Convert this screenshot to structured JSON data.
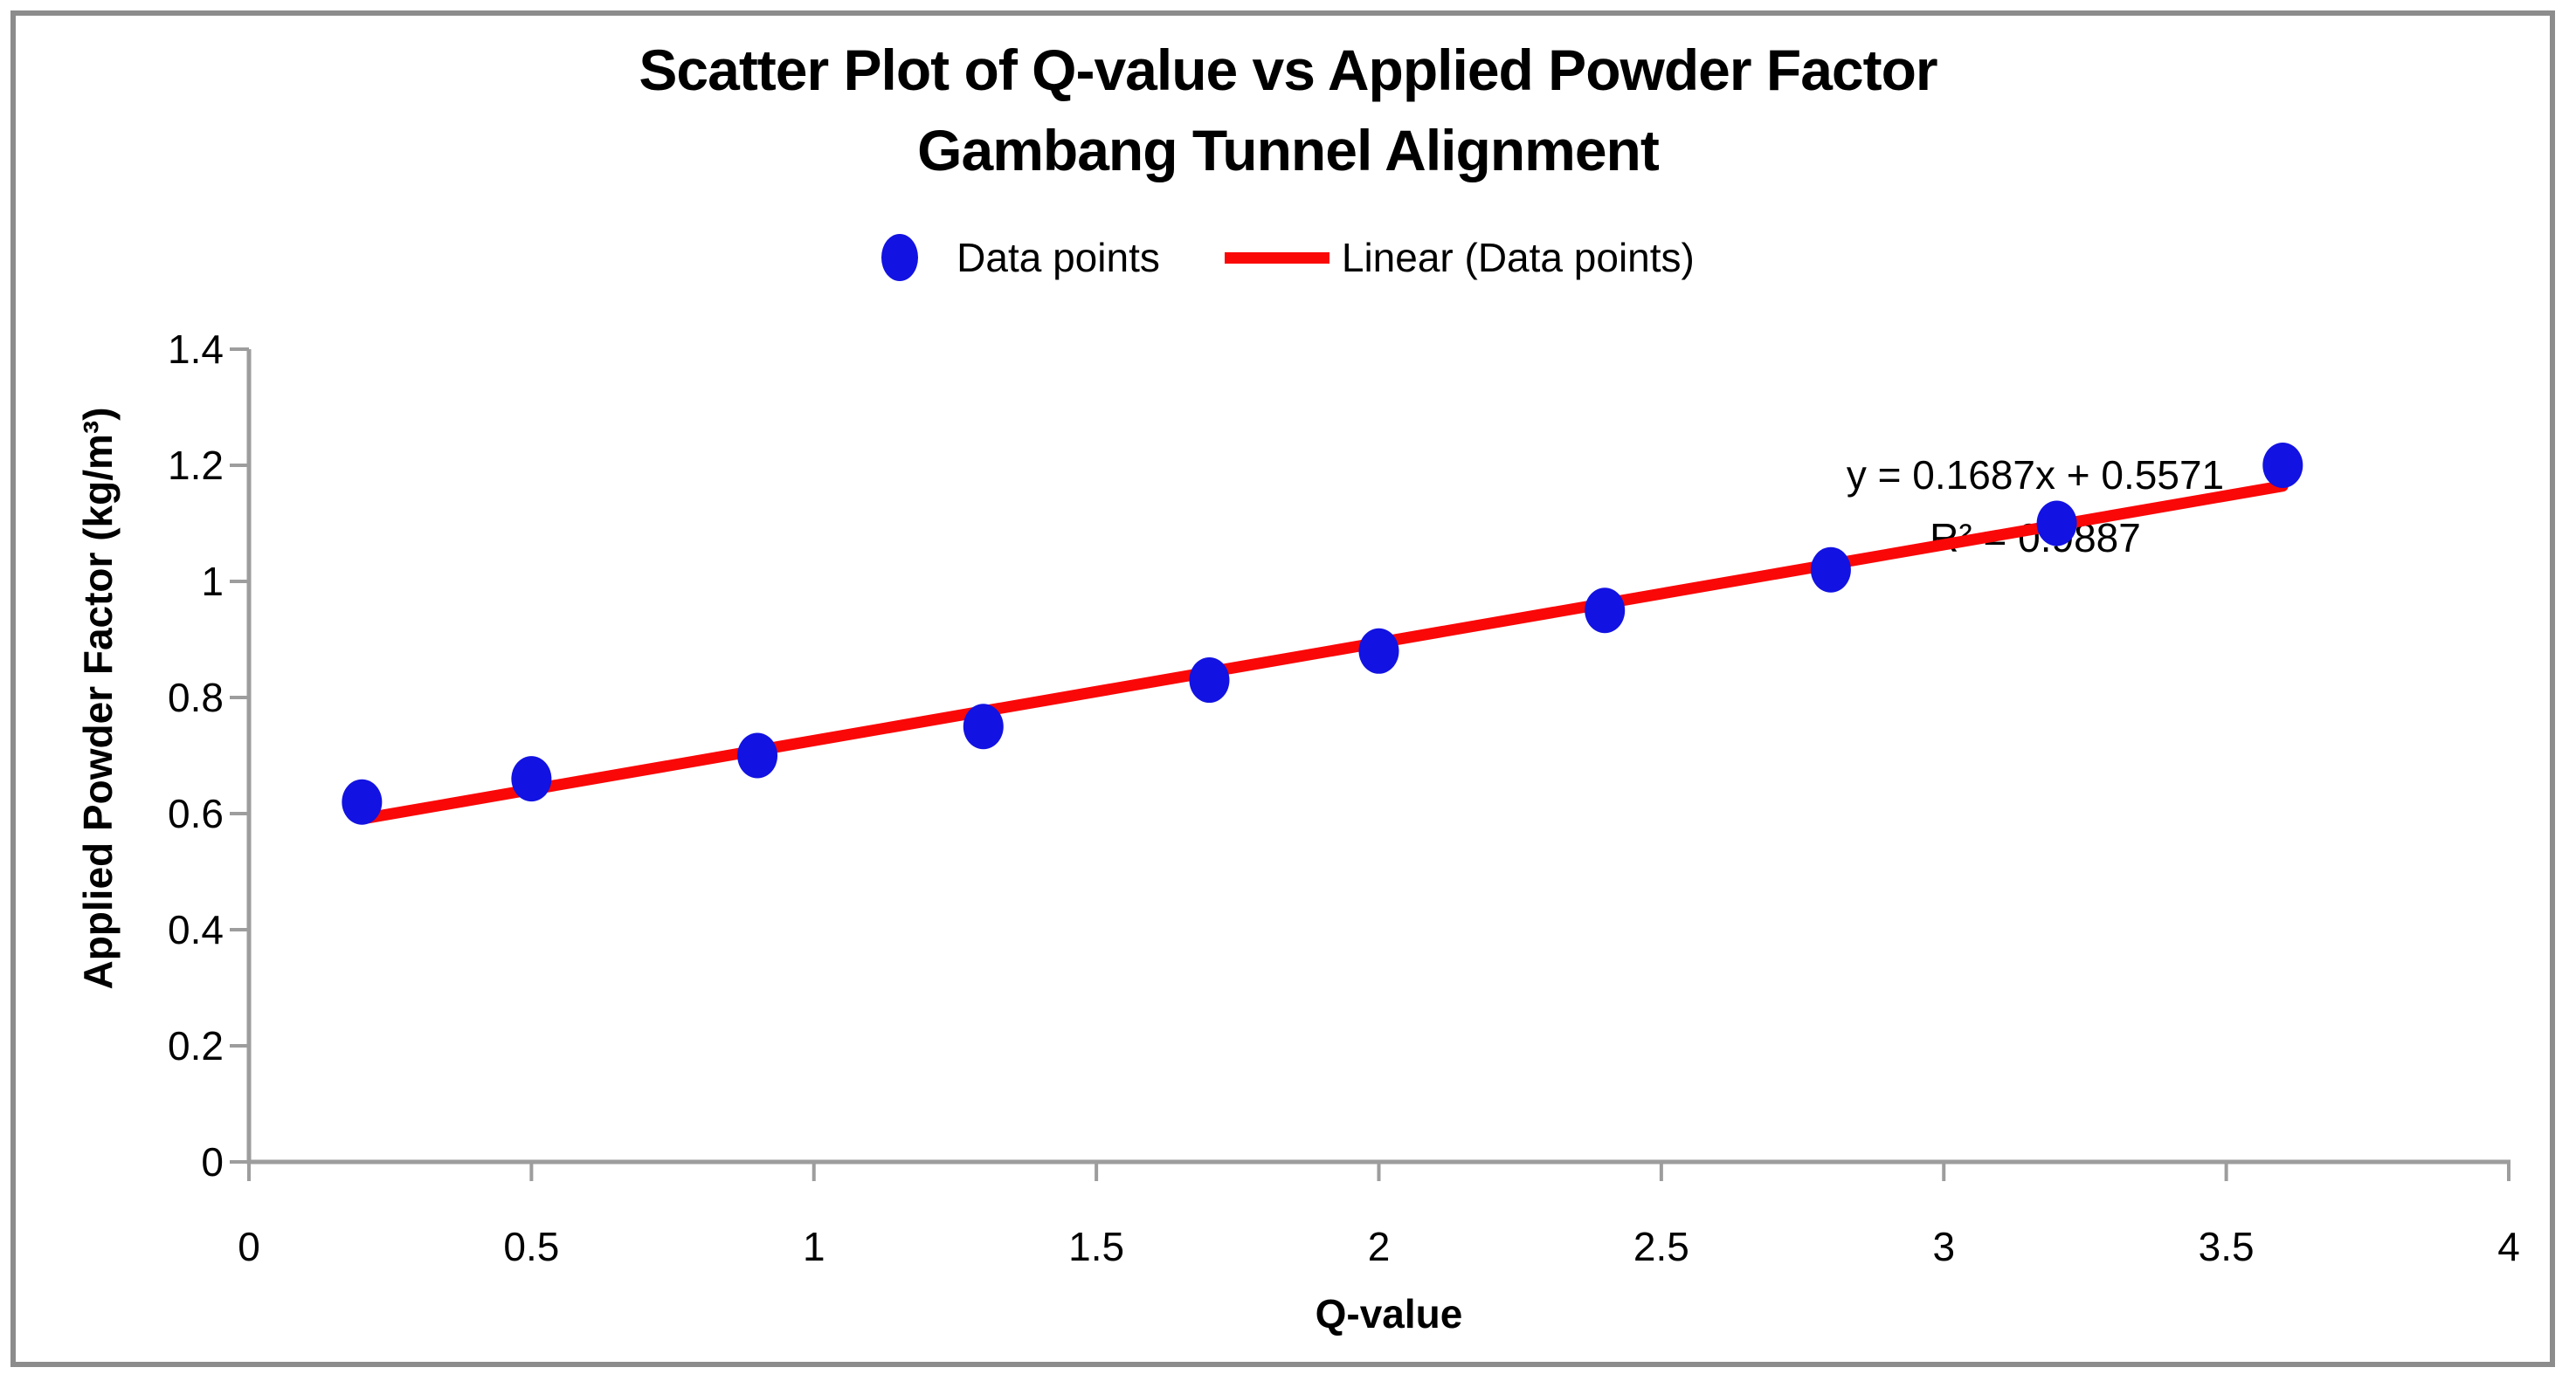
{
  "title": {
    "line1": "Scatter Plot of Q-value vs Applied Powder Factor",
    "line2": "Gambang Tunnel Alignment"
  },
  "legend": {
    "data_points_label": "Data points",
    "trendline_label": "Linear (Data points)"
  },
  "chart_data": {
    "type": "scatter",
    "title": "Scatter Plot of Q-value vs Applied Powder Factor",
    "subtitle": "Gambang Tunnel Alignment",
    "xlabel": "Q-value",
    "ylabel": "Applied Powder Factor (kg/m³)",
    "xlim": [
      0,
      4
    ],
    "ylim": [
      0,
      1.4
    ],
    "xticks": [
      0,
      0.5,
      1,
      1.5,
      2,
      2.5,
      3,
      3.5,
      4
    ],
    "yticks": [
      0,
      0.2,
      0.4,
      0.6,
      0.8,
      1,
      1.2,
      1.4
    ],
    "grid": false,
    "legend_position": "top-center",
    "legend_entries": [
      "Data points",
      "Linear (Data points)"
    ],
    "series": [
      {
        "name": "Data points",
        "points": [
          [
            0.2,
            0.62
          ],
          [
            0.5,
            0.66
          ],
          [
            0.9,
            0.7
          ],
          [
            1.3,
            0.75
          ],
          [
            1.7,
            0.83
          ],
          [
            2.0,
            0.88
          ],
          [
            2.4,
            0.95
          ],
          [
            2.8,
            1.02
          ],
          [
            3.2,
            1.1
          ],
          [
            3.6,
            1.2
          ]
        ]
      }
    ],
    "trendline": {
      "name": "Linear (Data points)",
      "slope": 0.1687,
      "intercept": 0.5571,
      "x_range": [
        0.2,
        3.6
      ],
      "equation_label": "y = 0.1687x + 0.5571",
      "r2_label": "R² = 0.9887"
    },
    "colors": {
      "points": "#1212e2",
      "trendline": "#fa0707",
      "axis": "#9d9d9d",
      "frame": "#8c8c8c",
      "text": "#000000"
    }
  }
}
